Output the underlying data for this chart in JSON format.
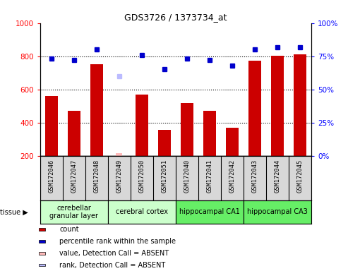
{
  "title": "GDS3726 / 1373734_at",
  "samples": [
    "GSM172046",
    "GSM172047",
    "GSM172048",
    "GSM172049",
    "GSM172050",
    "GSM172051",
    "GSM172040",
    "GSM172041",
    "GSM172042",
    "GSM172043",
    "GSM172044",
    "GSM172045"
  ],
  "count_values": [
    560,
    470,
    750,
    null,
    570,
    355,
    520,
    470,
    370,
    775,
    805,
    810
  ],
  "count_absent": [
    null,
    null,
    null,
    215,
    null,
    null,
    null,
    null,
    null,
    null,
    null,
    null
  ],
  "rank_values": [
    73,
    72,
    80,
    null,
    76,
    65,
    73,
    72,
    68,
    80,
    82,
    82
  ],
  "rank_absent": [
    null,
    null,
    null,
    60,
    null,
    null,
    null,
    null,
    null,
    null,
    null,
    null
  ],
  "tissues": [
    {
      "label": "cerebellar\ngranular layer",
      "start": 0,
      "end": 3,
      "color": "#ccffcc"
    },
    {
      "label": "cerebral cortex",
      "start": 3,
      "end": 6,
      "color": "#ccffcc"
    },
    {
      "label": "hippocampal CA1",
      "start": 6,
      "end": 9,
      "color": "#66ee66"
    },
    {
      "label": "hippocampal CA3",
      "start": 9,
      "end": 12,
      "color": "#66ee66"
    }
  ],
  "bar_color": "#cc0000",
  "bar_absent_color": "#ffbbbb",
  "rank_color": "#0000cc",
  "rank_absent_color": "#bbbbff",
  "ylim_left": [
    200,
    1000
  ],
  "ylim_right": [
    0,
    100
  ],
  "yticks_left": [
    200,
    400,
    600,
    800,
    1000
  ],
  "yticks_right": [
    0,
    25,
    50,
    75,
    100
  ],
  "grid_lines": [
    400,
    600,
    800
  ],
  "sample_bg": "#d8d8d8",
  "plot_bg": "#ffffff"
}
